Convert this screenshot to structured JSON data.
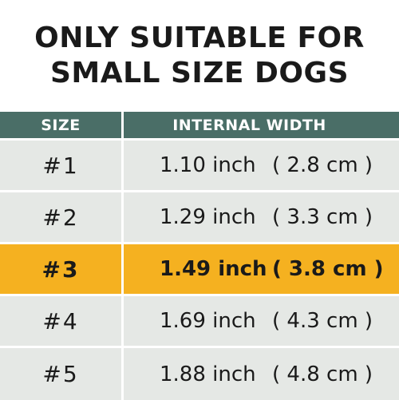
{
  "headline": {
    "line1": "ONLY SUITABLE FOR",
    "line2": "SMALL SIZE DOGS"
  },
  "table": {
    "headers": {
      "size": "SIZE",
      "internal_width": "INTERNAL WIDTH"
    },
    "rows": [
      {
        "size": "#1",
        "inch": "1.10 inch",
        "cm": "( 2.8 cm )",
        "highlighted": false
      },
      {
        "size": "#2",
        "inch": "1.29 inch",
        "cm": "( 3.3 cm )",
        "highlighted": false
      },
      {
        "size": "#3",
        "inch": "1.49 inch",
        "cm": "( 3.8 cm )",
        "highlighted": true
      },
      {
        "size": "#4",
        "inch": "1.69 inch",
        "cm": "( 4.3 cm )",
        "highlighted": false
      },
      {
        "size": "#5",
        "inch": "1.88 inch",
        "cm": "( 4.8 cm )",
        "highlighted": false
      }
    ]
  },
  "colors": {
    "header_bg": "#4a6e67",
    "row_bg": "#e5e8e5",
    "highlight_bg": "#f5b120",
    "text": "#1a1a1a"
  }
}
